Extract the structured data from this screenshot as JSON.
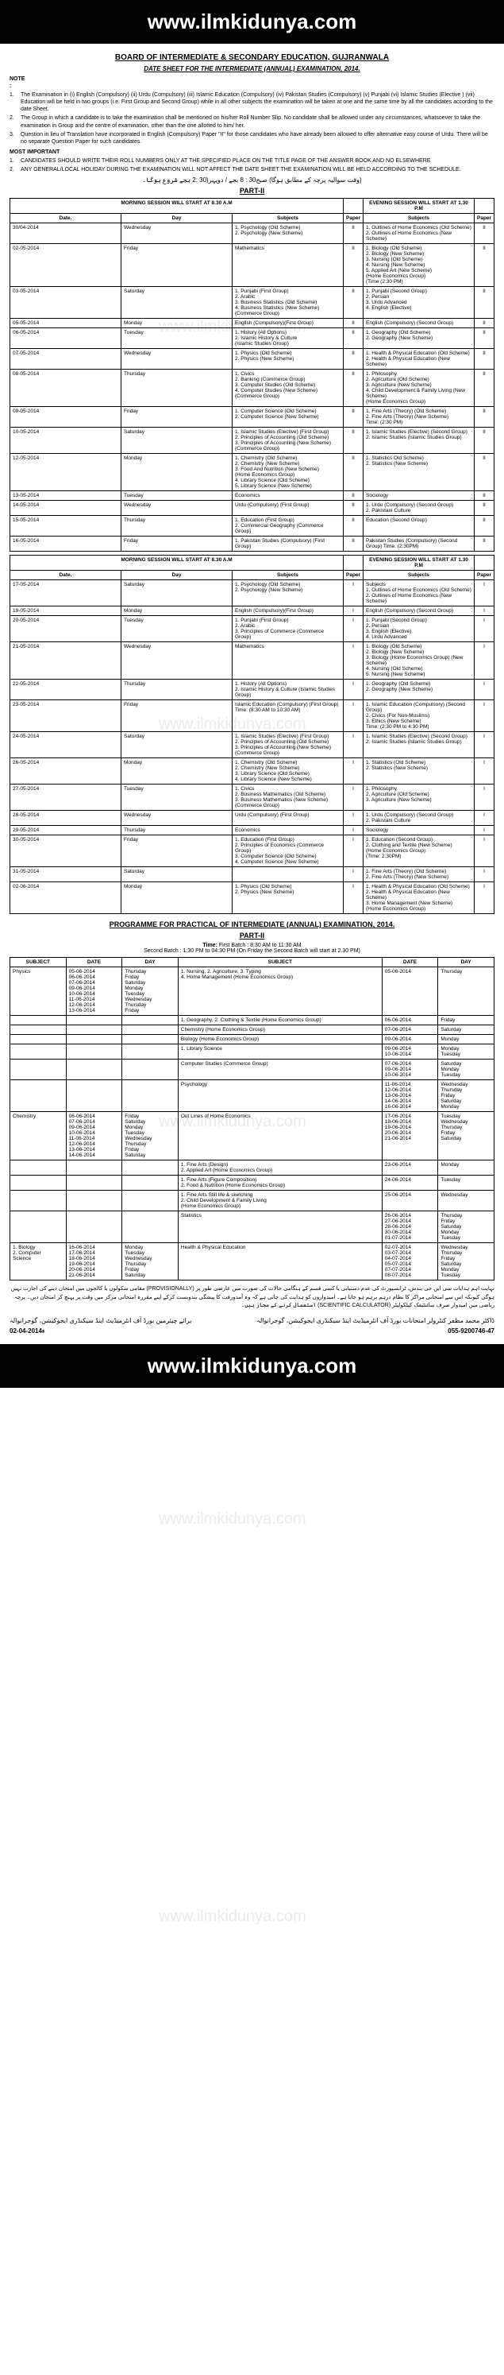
{
  "watermark_url": "www.ilmkidunya.com",
  "board": "BOARD OF INTERMEDIATE & SECONDARY EDUCATION, GUJRANWALA",
  "datesheet_title": "DATE SHEET FOR THE INTERMEDIATE (ANNUAL) EXAMINATION, 2014.",
  "note_label": "NOTE :",
  "notes": [
    "The Examination in (i) English (Compulsory) (ii) Urdu (Compulsory) (iii) Islamic Education (Compulsory) (iv) Pakistan Studies (Compulsory) (v) Punjabi (vi) Islamic Studies (Elective ) (vii) Education will be held in two groups (i.e. First Group and Second Group) while in all other subjects the examination will be taken at one and the same time by all the candidates according to the date Sheet.",
    "The Group in which a candidate is to take the examination shall be mentioned on his/her Roll Number Slip. No candidate shall be allowed under any circumstances, whatsoever to take the examination in Group and the centre of examination, other than the one allotted to him/ her.",
    "Question in lieu of Translation have incorporated in English (Compulsory) Paper \"II\" for those candidates who have already been allowed to offer alternative easy course of Urdu. There will be no separate Question Paper for such candidates."
  ],
  "important_label": "MOST IMPORTANT",
  "important": [
    "CANDIDATES SHOULD WRITE THEIR ROLL NUMBERS ONLY AT THE SPECIFIED PLACE ON THE TITLE PAGE OF THE ANSWER BOOK AND NO ELSEWHERE",
    "ANY GENERAL/LOCAL HOLIDAY DURING THE EXAMINATION WILL NOT AFFECT THE DATE SHEET THE EXAMINATION WILL BE HELD ACCORDING TO THE SCHEDULE."
  ],
  "urdu_time": "(وقت سوالیہ پرچہ کے مطابق ہوگا)   صبح30 : 8 بجے / دوپہر(30 :2 بجے شروع ہوگا۔",
  "part2_label": "PART-II",
  "morning2": "MORNING SESSION WILL START AT 8.30 A.M",
  "evening2": "EVENING SESSION WILL START AT 1.30 P.M",
  "cols": {
    "date": "Date.",
    "day": "Day",
    "subjects": "Subjects",
    "paper": "Paper"
  },
  "part2_rows": [
    {
      "date": "30/04-2014",
      "day": "Wednesday",
      "m": "1. Psychology (Old Scheme)\n2. Psychology (New Scheme)",
      "mp": "II",
      "e": "1. Outlines of Home Economics (Old  Scheme)\n2. Outlines of Home Economics (New Scheme)",
      "ep": "II"
    },
    {
      "date": "02-05-2014",
      "day": "Friday",
      "m": "Mathematics",
      "mp": "II",
      "e": "1. Biology (Old Scheme)\n2. Biology (New Scheme)\n3. Nursing (Old Scheme)\n4. Nursing (New Scheme)\n5. Applied Art (New Scheme)\n   (Home Economics Group)\n   (Time (2:30 PM)",
      "ep": "II"
    },
    {
      "date": "03-05-2014",
      "day": "Saturday",
      "m": "1. Punjabi (First Group)\n2. Arabic\n3. Business Statistics (Old Scheme)\n4. Business Statistics (New Scheme)\n   (Commerce Group)",
      "mp": "II",
      "e": "1. Punjabi (Second Group)\n2. Persian\n3. Urdu Advanced\n4. English (Elective)",
      "ep": "II"
    },
    {
      "date": "05-05-2014",
      "day": "Monday",
      "m": "English (Compulsory)(First Group)",
      "mp": "II",
      "e": "English (Compulsory) (Second Group)",
      "ep": "II"
    },
    {
      "date": "06-05-2014",
      "day": "Tuesday",
      "m": "1. History (All Options)\n2. Islamic History & Culture\n   (Islamic Studies Group)",
      "mp": "II",
      "e": "1. Geography (Old Scheme)\n2. Geography (New Scheme)",
      "ep": "II"
    },
    {
      "date": "07-05-2014",
      "day": "Wednesday",
      "m": "1. Physics (Old Scheme)\n2. Physics (New Scheme)",
      "mp": "II",
      "e": "1. Health & Physical Education (Old  Scheme)\n2. Health & Physical Education (New Scheme)",
      "ep": "II"
    },
    {
      "date": "08-05-2014",
      "day": "Thursday",
      "m": "1. Civics\n2. Banking  (Commerce Group)\n3. Computer Studies (Old Scheme)\n4. Computer Studies (New Scheme)\n   (Commerce Group)",
      "mp": "II",
      "e": "1. Philosophy\n2. Agriculture (Old Scheme)\n3. Agriculture (New Scheme)\n4. Child Development & Family Living (New Scheme)\n   (Home Economics Group)",
      "ep": "II"
    },
    {
      "date": "09-05-2014",
      "day": "Friday",
      "m": "1. Computer Science  (Old Scheme)\n2. Computer Science (New Scheme)",
      "mp": "II",
      "e": "1. Fine Arts (Theory) (Old Scheme)\n2. Fine Arts (Theory) (New Scheme)\n   Time: (2:30 PM)",
      "ep": "II"
    },
    {
      "date": "10-05-2014",
      "day": "Saturday",
      "m": "1. Islamic Studies (Elective) (First Group)\n2. Principles of Accounting (Old Scheme)\n3. Principles of Accounting (New Scheme)\n   (Commerce Group)",
      "mp": "II",
      "e": "1. Islamic Studies (Elective) (Second Group)\n2. Islamic Studies (Islamic Studies Group)",
      "ep": "II"
    },
    {
      "date": "12-05-2014",
      "day": "Monday",
      "m": "1. Chemistry (Old Scheme)\n2. Chemistry (New Scheme)\n3. Food And Nutrition (New Scheme)\n   (Home Economics Group)\n4. Library Science (Old Scheme)\n5. Library Science (New Scheme)",
      "mp": "II",
      "e": "1. Statistics Old Scheme)\n2. Statistics (New Scheme)",
      "ep": "II"
    },
    {
      "date": "13-05-2014",
      "day": "Tuesday",
      "m": "Economics",
      "mp": "II",
      "e": "Sociology",
      "ep": "II"
    },
    {
      "date": "14-05-2014",
      "day": "Wednesday",
      "m": "Urdu (Compulsory)      (First Group)",
      "mp": "II",
      "e": "1. Urdu (Compulsory) (Second Group)\n2. Pakistani Culture",
      "ep": "II"
    },
    {
      "date": "15-05-2014",
      "day": "Thursday",
      "m": "1. Education (First Group)\n2. Commercial Geography (Commerce Group)",
      "mp": "II",
      "e": "Education (Second Group)",
      "ep": "II"
    },
    {
      "date": "16-05-2014",
      "day": "Friday",
      "m": "1. Pakistan Studies (Compulsory) (First Group)",
      "mp": "II",
      "e": "Pakistan Studies (Compulsory) (Second Group) Time: (2:30PM)",
      "ep": "II"
    }
  ],
  "part1_label": "PART-I",
  "morning1": "MORNING SESSION WILL START AT 8.30 A.M",
  "evening1": "EVENING SESSION WILL START AT 1.30 P.M",
  "part1_rows": [
    {
      "date": "17-05-2014",
      "day": "Saturday",
      "m": "1. Psychology (Old Scheme)\n2. Psychology (New Scheme)",
      "mp": "I",
      "e": "Subjects\n1. Outlines of Home Economics (Old  Scheme)\n2. Outlines of Home Economics (New Scheme)",
      "ep": "I"
    },
    {
      "date": "19-05-2014",
      "day": "Monday",
      "m": "English (Compulsory)(First Group)",
      "mp": "I",
      "e": "English (Compulsory) (Second Group)",
      "ep": "I"
    },
    {
      "date": "20-05-2014",
      "day": "Tuesday",
      "m": "1. Punjabi (First Group)\n2. Arabic\n3. Principles of Commerce (Commerce Group)",
      "mp": "I",
      "e": "1. Punjabi (Second Group)\n2. Persian\n3. English (Elective)\n4. Urdu Advanced",
      "ep": "I"
    },
    {
      "date": "21-05-2014",
      "day": "Wednesday",
      "m": "Mathematics",
      "mp": "I",
      "e": "1. Biology  (Old Scheme)\n2. Biology  (New Scheme)\n3. Biology (Home Economics Group) (New Scheme)\n4. Nursing (Old Scheme)\n5. Nursing (New Scheme)",
      "ep": "I"
    },
    {
      "date": "22-05-2014",
      "day": "Thursday",
      "m": "1. History (All Options)\n2. Islamic History & Culture (Islamic Studies Group)",
      "mp": "I",
      "e": "1. Geography (Old Scheme)\n2. Geography (New Scheme)",
      "ep": "I"
    },
    {
      "date": "23-05-2014",
      "day": "Friday",
      "m": "Islamic Education (Compulsory) (First Group)\nTime: (8:30 AM to 10:30 AM)",
      "mp": "I",
      "e": "1. Islamic Education (Compulsory) (Second Group)\n2. Civics (For Non-Muslims)\n3. Ethics (New Scheme)\n   Time: (2:30 PM to 4:30 PM)",
      "ep": "I"
    },
    {
      "date": "24-05-2014",
      "day": "Saturday",
      "m": "1. Islamic Studies (Elective) (First Group)\n2. Principles of Accounting (Old Scheme)\n3. Principles of Accounting (New Scheme)\n   (Commerce Group)",
      "mp": "I",
      "e": "1. Islamic Studies (Elective) (Second Group)\n2. Islamic Studies  (Islamic Studies Group)",
      "ep": "I"
    },
    {
      "date": "26-05-2014",
      "day": "Monday",
      "m": "1. Chemistry (Old Scheme)\n2. Chemistry (New Scheme)\n3. Library Science (Old Scheme)\n4. Library Science (New Scheme)",
      "mp": "I",
      "e": "1. Statistics (Old Scheme)\n2. Statistics (New Scheme)",
      "ep": "I"
    },
    {
      "date": "27-05-2014",
      "day": "Tuesday",
      "m": "1. Civics\n2. Business Mathematics (Old Scheme)\n3. Business Mathematics (New Scheme)\n   (Commerce Group)",
      "mp": "I",
      "e": "1. Philosophy\n2. Agriculture (Old Scheme)\n3. Agriculture (New Scheme)",
      "ep": "I"
    },
    {
      "date": "28-05-2014",
      "day": "Wednesday",
      "m": "Urdu (Compulsory)     (First Group)",
      "mp": "I",
      "e": "1. Urdu (Compulsory) (Second Group)\n2. Pakistani Culture",
      "ep": "I"
    },
    {
      "date": "29-05-2014",
      "day": "Thursday",
      "m": "Economics",
      "mp": "I",
      "e": "Sociology",
      "ep": "I"
    },
    {
      "date": "30-05-2014",
      "day": "Friday",
      "m": "1. Education (First Group)\n2. Principles of Economics (Commerce Group)\n3. Computer Science (Old Scheme)\n4. Computer Science (New Scheme)",
      "mp": "I",
      "e": "1. Education (Second Group)\n2. Clothing and Textile (New Scheme)\n   (Home Economics Group)\n   (Time: 2:30PM)",
      "ep": "I"
    },
    {
      "date": "31-05-2014",
      "day": "Saturday",
      "m": "",
      "mp": "I",
      "e": "1. Fine Arts (Theory) (Old Scheme)\n2. Fine Arts (Theory) (New Scheme)",
      "ep": "I"
    },
    {
      "date": "02-06-2014",
      "day": "Monday",
      "m": "1. Physics (Old Scheme)\n2. Physics (New Scheme)",
      "mp": "I",
      "e": "1. Health & Physical Education (Old Scheme)\n2. Health & Physical Education (New Scheme)\n3. Home Management (New Scheme)\n   (Home Economics Group)",
      "ep": "I"
    }
  ],
  "prog_title": "PROGRAMME FOR PRACTICAL  OF  INTERMEDIATE (ANNUAL) EXAMINATION, 2014.",
  "prog_part": "PART-II",
  "batch_label": "Time:",
  "batch1": "First Batch    :   8:30 AM   to   11:30 AM",
  "batch2": "Second Batch : 1:30 PM   to   04:30 PM    (On Friday the Second Batch will start at 2.30 PM)",
  "pcols": {
    "subject": "SUBJECT",
    "date": "DATE",
    "day": "DAY",
    "subject2": "SUBJECT",
    "date2": "DATE",
    "day2": "DAY"
  },
  "prac_rows": [
    {
      "s": "Physics",
      "d": "05-06-2014\n06-06-2014\n07-06-2014\n09-06-2014\n10-06-2014\n11-06-2014\n12-06-2014\n13-06-2014",
      "dy": "Thursday\nFriday\nSaturday\nMonday\nTuesday\nWednesday\nThursday\nFriday",
      "sb": "1. Nursing, 2. Agriculture, 3. Typing\n4. Home Management (Home Economics Group)",
      "d2": "05-06-2014",
      "dy2": "Thursday"
    },
    {
      "s": "",
      "d": "",
      "dy": "",
      "sb": "1. Geography,  2. Clothing & Textile (Home Economics Group)",
      "d2": "06-06-2014",
      "dy2": "Friday"
    },
    {
      "s": "",
      "d": "",
      "dy": "",
      "sb": "Chemistry (Home Economics Group)",
      "d2": "07-06-2014",
      "dy2": "Saturday"
    },
    {
      "s": "",
      "d": "",
      "dy": "",
      "sb": "Biology (Home Economics Group)",
      "d2": "09-06-2014",
      "dy2": "Monday"
    },
    {
      "s": "",
      "d": "",
      "dy": "",
      "sb": "1. Library Science",
      "d2": "09-06-2014\n10-06-2014",
      "dy2": "Monday\nTuesday"
    },
    {
      "s": "",
      "d": "",
      "dy": "",
      "sb": "Computer Studies  (Commerce Group)",
      "d2": "07-06-2014\n09-06-2014\n10-06-2014",
      "dy2": "Saturday\nMonday\nTuesday"
    },
    {
      "s": "",
      "d": "",
      "dy": "",
      "sb": "Psychology",
      "d2": "11-06-2014\n12-06-2014\n13-06-2014\n14-06-2014\n16-06-2014",
      "dy2": "Wednesday\nThursday\nFriday\nSaturday\nMonday"
    },
    {
      "s": "Chemistry",
      "d": "06-06-2014\n07-06-2014\n09-06-2014\n10-06-2014\n11-06-2014\n12-06-2014\n13-06-2014\n14-06-2014",
      "dy": "Friday\nSaturday\nMonday\nTuesday\nWednesday\nThursday\nFriday\nSaturday",
      "sb": "Out Lines of Home Economics",
      "d2": "17-06-2014\n18-06-2014\n19-06-2014\n20-06-2014\n21-06-2014",
      "dy2": "Tuesday\nWednesday\nThursday\nFriday\nSaturday"
    },
    {
      "s": "",
      "d": "",
      "dy": "",
      "sb": "1. Fine Arts (Design)\n2. Applied Art (Home Economics Group)",
      "d2": "23-06-2014",
      "dy2": "Monday"
    },
    {
      "s": "",
      "d": "",
      "dy": "",
      "sb": "1. Fine Arts  (Figure Composition)\n2. Food & Nutrition (Home Economics Group)",
      "d2": "24-06-2014",
      "dy2": "Tuesday"
    },
    {
      "s": "",
      "d": "",
      "dy": "",
      "sb": "1. Fine Arts  Still life & sketching\n2. Child Development & Family Living\n    (Home Economics Group)",
      "d2": "25-06-2014",
      "dy2": "Wednesday"
    },
    {
      "s": "",
      "d": "",
      "dy": "",
      "sb": "Statistics",
      "d2": "26-06-2014\n27-06-2014\n28-06-2014\n30-06-2014\n01-07-2014",
      "dy2": "Thursday\nFriday\nSaturday\nMonday\nTuesday"
    },
    {
      "s": "1. Biology\n2. Computer\n   Science",
      "d": "16-06-2014\n17-06-2014\n18-06-2014\n19-06-2014\n20-06-2014\n21-06-2014",
      "dy": "Monday\nTuesday\nWednesday\nThursday\nFriday\nSaturday",
      "sb": "Health & Physical Education",
      "d2": "02-07-2014\n03-07-2014\n04-07-2014\n05-07-2014\n07-07-2014\n08-07-2014",
      "dy2": "Wednesday\nThursday\nFriday\nSaturday\nMonday\nTuesday"
    }
  ],
  "urdu_notice": "نہایت اہم ہدایات\nسی این جی بندش، ٹرانسپورٹ کی عدم دستیابی یا کسی قسم کے ہنگامی حالات کی صورت میں عارضی طور پر (PROVISIONALLY) مقامی سکولوں یا کالجوں میں امتحان دینے کی اجازت نہیں ہوگی کیونکہ اس سے امتحانی مراکز کا نظام درہم برہم ہو جاتا ہے۔ امیدواروں کو ہدایت کی جاتی ہے کہ وہ آمدورفت کا پیشگی بندوبست کرکے اپنے مقررہ امتحانی مرکز میں وقت پر پہنچ کر امتحان دیں۔\nپرچہ ریاضی میں امیدوار صرف سائنٹیفک کیلکولیٹر (SCIENTIFIC CALCULATOR) استعمال کرنے کے مجاز ہیں۔",
  "sig_left": "برائے چیئرمین\nبورڈ آف انٹرمیڈیٹ اینڈ سیکنڈری ایجوکیشن، گوجرانوالہ",
  "sig_right": "ڈاکٹر محمد مظفر\nکنٹرولر امتحانات\nبورڈ آف انٹرمیڈیٹ اینڈ سیکنڈری ایجوکیشن، گوجرانوالہ",
  "issue_date": "02-04-2014ء",
  "phone": "055-9200746-47"
}
